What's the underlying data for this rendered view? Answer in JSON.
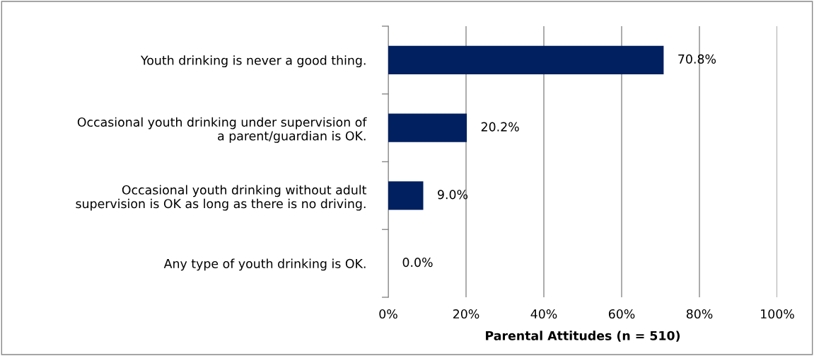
{
  "chart_data": {
    "type": "bar",
    "orientation": "horizontal",
    "xlabel": "Parental Attitudes (n = 510)",
    "categories": [
      "Youth drinking is never a good thing.",
      "Occasional youth drinking under supervision of\na parent/guardian is OK.",
      "Occasional youth drinking without adult\nsupervision is OK as long as there is no driving.",
      "Any type of youth drinking is OK."
    ],
    "values": [
      70.8,
      20.2,
      9.0,
      0.0
    ],
    "color": "#002060",
    "value_labels": [
      "70.8%",
      "20.2%",
      "9.0%",
      "0.0%"
    ],
    "xlim": [
      0,
      100
    ],
    "xticks": [
      {
        "value": 0,
        "label": "0%"
      },
      {
        "value": 20,
        "label": "20%"
      },
      {
        "value": 40,
        "label": "40%"
      },
      {
        "value": 60,
        "label": "60%"
      },
      {
        "value": 80,
        "label": "80%"
      },
      {
        "value": 100,
        "label": "100%"
      }
    ],
    "grid": "x"
  }
}
